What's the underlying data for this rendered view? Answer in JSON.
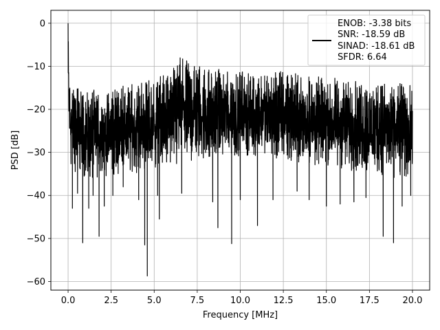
{
  "chart_data": {
    "type": "line",
    "title": "",
    "xlabel": "Frequency [MHz]",
    "ylabel": "PSD [dB]",
    "xlim": [
      -1.0,
      21.0
    ],
    "ylim": [
      -62,
      3
    ],
    "xticks": [
      0.0,
      2.5,
      5.0,
      7.5,
      10.0,
      12.5,
      15.0,
      17.5,
      20.0
    ],
    "xtick_labels": [
      "0.0",
      "2.5",
      "5.0",
      "7.5",
      "10.0",
      "12.5",
      "15.0",
      "17.5",
      "20.0"
    ],
    "yticks": [
      0,
      -10,
      -20,
      -30,
      -40,
      -50,
      -60
    ],
    "ytick_labels": [
      "0",
      "−10",
      "−20",
      "−30",
      "−40",
      "−50",
      "−60"
    ],
    "grid": true,
    "legend_position": "top-right",
    "series": [
      {
        "name": "ENOB: -3.38 bits\nSNR: -18.59 dB\nSINAD: -18.61 dB\nSFDR: 6.64",
        "legend_lines": [
          "ENOB: -3.38 bits",
          "SNR: -18.59 dB",
          "SINAD: -18.61 dB",
          "SFDR: 6.64"
        ],
        "color": "#000000",
        "x_range": [
          0.0,
          20.0
        ],
        "envelope": {
          "x": [
            0.0,
            0.05,
            0.1,
            0.2,
            0.5,
            1.0,
            2.0,
            3.0,
            4.0,
            5.0,
            6.0,
            6.5,
            7.0,
            8.0,
            9.0,
            10.0,
            11.0,
            12.0,
            13.0,
            14.0,
            15.0,
            16.0,
            17.0,
            18.0,
            19.0,
            20.0
          ],
          "upper": [
            0.0,
            -8.5,
            -12.0,
            -14.0,
            -15.0,
            -16.0,
            -15.0,
            -14.5,
            -14.0,
            -13.0,
            -11.0,
            -7.0,
            -9.0,
            -10.0,
            -10.5,
            -11.0,
            -12.0,
            -11.0,
            -11.5,
            -12.0,
            -12.5,
            -13.0,
            -13.0,
            -13.5,
            -14.0,
            -14.0
          ],
          "lower": [
            -23.0,
            -28.0,
            -32.0,
            -34.0,
            -35.0,
            -36.0,
            -36.0,
            -35.0,
            -35.0,
            -34.0,
            -33.0,
            -33.0,
            -32.0,
            -32.0,
            -32.0,
            -31.0,
            -31.0,
            -32.0,
            -32.0,
            -33.0,
            -33.0,
            -34.0,
            -35.0,
            -35.0,
            -36.0,
            -36.0
          ]
        },
        "deep_dips": [
          {
            "x": 0.25,
            "y": -43.0
          },
          {
            "x": 0.55,
            "y": -39.5
          },
          {
            "x": 0.85,
            "y": -51.0
          },
          {
            "x": 1.2,
            "y": -43.0
          },
          {
            "x": 1.45,
            "y": -40.0
          },
          {
            "x": 1.8,
            "y": -49.5
          },
          {
            "x": 2.1,
            "y": -42.5
          },
          {
            "x": 2.6,
            "y": -40.0
          },
          {
            "x": 3.2,
            "y": -38.0
          },
          {
            "x": 4.1,
            "y": -41.0
          },
          {
            "x": 4.45,
            "y": -51.5
          },
          {
            "x": 4.6,
            "y": -58.7
          },
          {
            "x": 5.2,
            "y": -40.0
          },
          {
            "x": 5.3,
            "y": -45.5
          },
          {
            "x": 6.6,
            "y": -39.5
          },
          {
            "x": 8.4,
            "y": -41.5
          },
          {
            "x": 8.7,
            "y": -47.5
          },
          {
            "x": 9.5,
            "y": -51.2
          },
          {
            "x": 10.0,
            "y": -41.0
          },
          {
            "x": 11.0,
            "y": -47.0
          },
          {
            "x": 11.9,
            "y": -41.0
          },
          {
            "x": 13.3,
            "y": -39.0
          },
          {
            "x": 14.0,
            "y": -41.0
          },
          {
            "x": 15.0,
            "y": -42.5
          },
          {
            "x": 15.8,
            "y": -42.0
          },
          {
            "x": 16.6,
            "y": -41.5
          },
          {
            "x": 17.3,
            "y": -40.5
          },
          {
            "x": 18.3,
            "y": -49.5
          },
          {
            "x": 18.9,
            "y": -51.0
          },
          {
            "x": 19.4,
            "y": -42.5
          },
          {
            "x": 19.9,
            "y": -40.0
          }
        ]
      }
    ]
  }
}
